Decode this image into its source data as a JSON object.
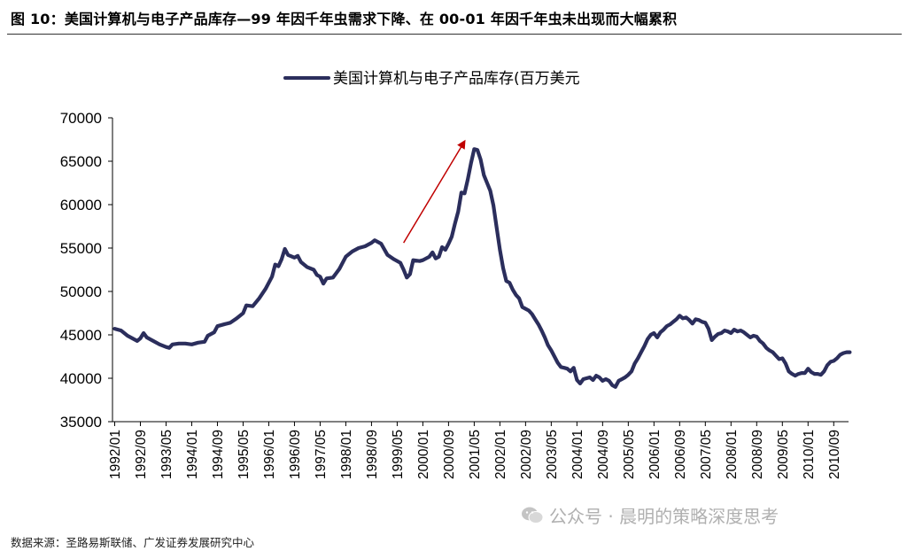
{
  "figure": {
    "title": "图 10：美国计算机与电子产品库存—99 年因千年虫需求下降、在 00-01 年因千年虫未出现而大幅累积",
    "source": "数据来源：圣路易斯联储、广发证券发展研究中心",
    "watermark": "公众号 · 晨明的策略深度思考",
    "watermark_icon": "wechat-icon"
  },
  "chart_data": {
    "type": "line",
    "ylim": [
      35000,
      70000
    ],
    "yticks": [
      35000,
      40000,
      45000,
      50000,
      55000,
      60000,
      65000,
      70000
    ],
    "xticks": [
      "1992/01",
      "1992/09",
      "1993/05",
      "1994/01",
      "1994/09",
      "1995/05",
      "1996/01",
      "1996/09",
      "1997/05",
      "1998/01",
      "1998/09",
      "1999/05",
      "2000/01",
      "2000/09",
      "2001/05",
      "2002/01",
      "2002/09",
      "2003/05",
      "2004/01",
      "2004/09",
      "2005/05",
      "2006/01",
      "2006/09",
      "2007/05",
      "2008/01",
      "2008/09",
      "2009/05",
      "2010/01",
      "2010/09"
    ],
    "series": [
      {
        "name": "美国计算机与电子产品库存(百万美元",
        "color": "#2b2e5c",
        "points": [
          [
            "1992/01",
            45700
          ],
          [
            "1992/03",
            45500
          ],
          [
            "1992/05",
            44900
          ],
          [
            "1992/07",
            44500
          ],
          [
            "1992/08",
            44300
          ],
          [
            "1992/09",
            44600
          ],
          [
            "1992/10",
            45200
          ],
          [
            "1992/11",
            44700
          ],
          [
            "1993/01",
            44300
          ],
          [
            "1993/03",
            43900
          ],
          [
            "1993/05",
            43600
          ],
          [
            "1993/06",
            43500
          ],
          [
            "1993/07",
            43900
          ],
          [
            "1993/09",
            44000
          ],
          [
            "1993/11",
            44000
          ],
          [
            "1994/01",
            43900
          ],
          [
            "1994/03",
            44100
          ],
          [
            "1994/05",
            44200
          ],
          [
            "1994/06",
            44900
          ],
          [
            "1994/08",
            45300
          ],
          [
            "1994/09",
            46000
          ],
          [
            "1994/11",
            46200
          ],
          [
            "1995/01",
            46400
          ],
          [
            "1995/03",
            46900
          ],
          [
            "1995/05",
            47500
          ],
          [
            "1995/06",
            48400
          ],
          [
            "1995/08",
            48300
          ],
          [
            "1995/10",
            49200
          ],
          [
            "1995/12",
            50300
          ],
          [
            "1996/02",
            51700
          ],
          [
            "1996/03",
            53100
          ],
          [
            "1996/04",
            52900
          ],
          [
            "1996/05",
            53700
          ],
          [
            "1996/06",
            54900
          ],
          [
            "1996/07",
            54200
          ],
          [
            "1996/09",
            53900
          ],
          [
            "1996/10",
            54100
          ],
          [
            "1996/11",
            53400
          ],
          [
            "1997/01",
            52800
          ],
          [
            "1997/03",
            52500
          ],
          [
            "1997/04",
            51900
          ],
          [
            "1997/05",
            51700
          ],
          [
            "1997/06",
            50900
          ],
          [
            "1997/07",
            51500
          ],
          [
            "1997/09",
            51600
          ],
          [
            "1997/10",
            52100
          ],
          [
            "1997/11",
            52600
          ],
          [
            "1998/01",
            54000
          ],
          [
            "1998/03",
            54600
          ],
          [
            "1998/05",
            55000
          ],
          [
            "1998/07",
            55200
          ],
          [
            "1998/09",
            55600
          ],
          [
            "1998/10",
            55900
          ],
          [
            "1998/12",
            55500
          ],
          [
            "1999/02",
            54200
          ],
          [
            "1999/04",
            53700
          ],
          [
            "1999/06",
            53300
          ],
          [
            "1999/07",
            52500
          ],
          [
            "1999/08",
            51600
          ],
          [
            "1999/09",
            52000
          ],
          [
            "1999/10",
            53600
          ],
          [
            "1999/12",
            53500
          ],
          [
            "2000/01",
            53600
          ],
          [
            "2000/03",
            54000
          ],
          [
            "2000/04",
            54500
          ],
          [
            "2000/05",
            53800
          ],
          [
            "2000/06",
            54000
          ],
          [
            "2000/07",
            55100
          ],
          [
            "2000/08",
            54800
          ],
          [
            "2000/09",
            55500
          ],
          [
            "2000/10",
            56300
          ],
          [
            "2000/11",
            57800
          ],
          [
            "2000/12",
            59200
          ],
          [
            "2001/01",
            61400
          ],
          [
            "2001/02",
            61300
          ],
          [
            "2001/03",
            62900
          ],
          [
            "2001/04",
            64800
          ],
          [
            "2001/05",
            66400
          ],
          [
            "2001/06",
            66300
          ],
          [
            "2001/07",
            65200
          ],
          [
            "2001/08",
            63400
          ],
          [
            "2001/09",
            62500
          ],
          [
            "2001/10",
            61600
          ],
          [
            "2001/11",
            59900
          ],
          [
            "2001/12",
            57300
          ],
          [
            "2002/01",
            54800
          ],
          [
            "2002/02",
            52700
          ],
          [
            "2002/03",
            51200
          ],
          [
            "2002/04",
            51000
          ],
          [
            "2002/05",
            50200
          ],
          [
            "2002/06",
            49600
          ],
          [
            "2002/07",
            49200
          ],
          [
            "2002/08",
            48200
          ],
          [
            "2002/09",
            48000
          ],
          [
            "2002/10",
            47800
          ],
          [
            "2002/11",
            47400
          ],
          [
            "2002/12",
            46800
          ],
          [
            "2003/01",
            46200
          ],
          [
            "2003/02",
            45500
          ],
          [
            "2003/03",
            44700
          ],
          [
            "2003/04",
            43800
          ],
          [
            "2003/05",
            43200
          ],
          [
            "2003/06",
            42500
          ],
          [
            "2003/07",
            41800
          ],
          [
            "2003/08",
            41300
          ],
          [
            "2003/09",
            41200
          ],
          [
            "2003/10",
            41100
          ],
          [
            "2003/11",
            40800
          ],
          [
            "2003/12",
            41200
          ],
          [
            "2004/01",
            39800
          ],
          [
            "2004/02",
            39400
          ],
          [
            "2004/03",
            39900
          ],
          [
            "2004/04",
            40000
          ],
          [
            "2004/05",
            40100
          ],
          [
            "2004/06",
            39800
          ],
          [
            "2004/07",
            40300
          ],
          [
            "2004/08",
            40100
          ],
          [
            "2004/09",
            39700
          ],
          [
            "2004/10",
            39900
          ],
          [
            "2004/11",
            39700
          ],
          [
            "2004/12",
            39200
          ],
          [
            "2005/01",
            39000
          ],
          [
            "2005/02",
            39700
          ],
          [
            "2005/03",
            39900
          ],
          [
            "2005/04",
            40100
          ],
          [
            "2005/05",
            40400
          ],
          [
            "2005/06",
            40800
          ],
          [
            "2005/07",
            41700
          ],
          [
            "2005/08",
            42300
          ],
          [
            "2005/09",
            43000
          ],
          [
            "2005/10",
            43700
          ],
          [
            "2005/11",
            44500
          ],
          [
            "2005/12",
            45000
          ],
          [
            "2006/01",
            45200
          ],
          [
            "2006/02",
            44700
          ],
          [
            "2006/03",
            45300
          ],
          [
            "2006/04",
            45600
          ],
          [
            "2006/05",
            46000
          ],
          [
            "2006/06",
            46200
          ],
          [
            "2006/07",
            46500
          ],
          [
            "2006/08",
            46800
          ],
          [
            "2006/09",
            47200
          ],
          [
            "2006/10",
            46900
          ],
          [
            "2006/11",
            47000
          ],
          [
            "2006/12",
            46700
          ],
          [
            "2007/01",
            46300
          ],
          [
            "2007/02",
            46800
          ],
          [
            "2007/03",
            46700
          ],
          [
            "2007/04",
            46500
          ],
          [
            "2007/05",
            46400
          ],
          [
            "2007/06",
            45700
          ],
          [
            "2007/07",
            44400
          ],
          [
            "2007/08",
            44800
          ],
          [
            "2007/09",
            45100
          ],
          [
            "2007/10",
            45200
          ],
          [
            "2007/11",
            45500
          ],
          [
            "2007/12",
            45400
          ],
          [
            "2008/01",
            45200
          ],
          [
            "2008/02",
            45600
          ],
          [
            "2008/03",
            45400
          ],
          [
            "2008/04",
            45500
          ],
          [
            "2008/05",
            45300
          ],
          [
            "2008/06",
            45000
          ],
          [
            "2008/07",
            44700
          ],
          [
            "2008/08",
            44900
          ],
          [
            "2008/09",
            44800
          ],
          [
            "2008/10",
            44300
          ],
          [
            "2008/11",
            44000
          ],
          [
            "2008/12",
            43500
          ],
          [
            "2009/01",
            43200
          ],
          [
            "2009/02",
            43000
          ],
          [
            "2009/03",
            42600
          ],
          [
            "2009/04",
            42200
          ],
          [
            "2009/05",
            42300
          ],
          [
            "2009/06",
            41700
          ],
          [
            "2009/07",
            40800
          ],
          [
            "2009/08",
            40500
          ],
          [
            "2009/09",
            40300
          ],
          [
            "2009/10",
            40500
          ],
          [
            "2009/11",
            40600
          ],
          [
            "2009/12",
            40600
          ],
          [
            "2010/01",
            41100
          ],
          [
            "2010/02",
            40700
          ],
          [
            "2010/03",
            40500
          ],
          [
            "2010/04",
            40500
          ],
          [
            "2010/05",
            40400
          ],
          [
            "2010/06",
            40800
          ],
          [
            "2010/07",
            41500
          ],
          [
            "2010/08",
            41900
          ],
          [
            "2010/09",
            42000
          ],
          [
            "2010/10",
            42300
          ],
          [
            "2010/11",
            42700
          ],
          [
            "2010/12",
            42900
          ],
          [
            "2011/01",
            43000
          ],
          [
            "2011/02",
            43000
          ]
        ]
      }
    ],
    "annotations": [
      {
        "type": "arrow",
        "color": "#c00000",
        "from": [
          "1999/07",
          55600
        ],
        "to": [
          "2001/02",
          67300
        ]
      }
    ],
    "legend": "top-center",
    "grid": false
  }
}
